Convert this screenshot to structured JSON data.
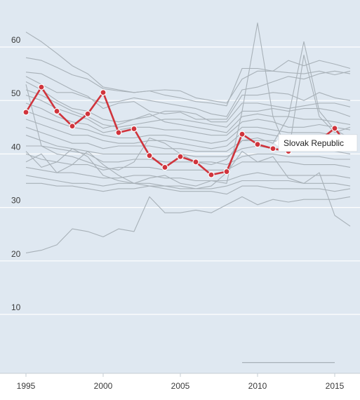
{
  "chart_data": {
    "type": "line",
    "x": [
      1995,
      1996,
      1997,
      1998,
      1999,
      2000,
      2001,
      2002,
      2003,
      2004,
      2005,
      2006,
      2007,
      2008,
      2009,
      2010,
      2011,
      2012,
      2013,
      2014,
      2015,
      2016
    ],
    "xticks": [
      1995,
      2000,
      2005,
      2010,
      2015
    ],
    "xtick_labels": [
      "1995",
      "2000",
      "2005",
      "2010",
      "2015"
    ],
    "yticks": [
      10,
      20,
      30,
      40,
      50,
      60
    ],
    "ytick_labels": [
      "10",
      "20",
      "30",
      "40",
      "50",
      "60"
    ],
    "ylim": [
      0,
      66
    ],
    "xlim": [
      1994.8,
      2016.3
    ],
    "grid": true,
    "highlight": {
      "name": "Slovak Republic",
      "color": "#d0343c",
      "values": [
        47.8,
        52.5,
        48.0,
        45.2,
        47.5,
        51.5,
        44.0,
        44.7,
        39.7,
        37.5,
        39.5,
        38.5,
        36.1,
        36.7,
        43.7,
        41.8,
        41.0,
        40.5,
        42.0,
        42.5,
        44.8,
        41.0
      ]
    },
    "background_series": [
      {
        "color": "#a8b1b8",
        "values": [
          62.8,
          61.0,
          58.8,
          56.5,
          55.0,
          52.5,
          52.0,
          51.5,
          51.8,
          51.0,
          50.5,
          49.8,
          49.5,
          49.0,
          56.0,
          56.0,
          55.5,
          57.5,
          56.5,
          57.5,
          56.8,
          56.0
        ]
      },
      {
        "color": "#a8b1b8",
        "values": [
          58.0,
          57.5,
          56.2,
          54.8,
          54.0,
          52.2,
          51.8,
          51.5,
          51.8,
          52.0,
          51.8,
          50.5,
          50.0,
          49.5,
          54.0,
          55.5,
          55.5,
          55.2,
          55.0,
          55.5,
          54.8,
          55.5
        ]
      },
      {
        "color": "#a8b1b8",
        "values": [
          55.3,
          55.0,
          53.5,
          52.0,
          50.8,
          48.5,
          49.5,
          49.8,
          48.0,
          47.5,
          47.8,
          46.5,
          46.5,
          46.5,
          51.0,
          51.0,
          51.5,
          51.2,
          50.0,
          51.5,
          50.5,
          50.0
        ]
      },
      {
        "color": "#a8b1b8",
        "values": [
          54.5,
          53.0,
          51.5,
          51.5,
          50.5,
          49.5,
          49.8,
          50.5,
          50.0,
          49.5,
          49.0,
          48.5,
          47.5,
          47.0,
          52.0,
          52.5,
          53.5,
          54.5,
          54.0,
          55.0,
          55.5,
          55.0
        ]
      },
      {
        "color": "#a8b1b8",
        "values": [
          53.5,
          52.0,
          50.0,
          48.5,
          48.0,
          46.5,
          46.0,
          46.5,
          47.0,
          48.0,
          48.0,
          47.5,
          46.0,
          46.0,
          49.5,
          49.5,
          49.0,
          48.5,
          49.0,
          49.5,
          49.5,
          48.8
        ]
      },
      {
        "color": "#a8b1b8",
        "values": [
          52.0,
          51.0,
          49.5,
          48.0,
          47.0,
          45.5,
          45.0,
          45.5,
          46.0,
          46.5,
          46.5,
          46.0,
          45.5,
          45.0,
          48.0,
          48.0,
          48.5,
          48.0,
          48.5,
          48.5,
          48.0,
          47.0
        ]
      },
      {
        "color": "#a8b1b8",
        "values": [
          51.0,
          50.0,
          48.5,
          47.5,
          46.5,
          44.8,
          45.5,
          46.5,
          47.5,
          46.0,
          45.5,
          45.0,
          44.5,
          44.0,
          47.0,
          47.5,
          47.0,
          47.0,
          46.5,
          46.5,
          46.0,
          45.5
        ]
      },
      {
        "color": "#a8b1b8",
        "values": [
          49.5,
          48.5,
          47.0,
          46.0,
          45.5,
          44.0,
          44.5,
          45.0,
          45.0,
          44.5,
          44.5,
          44.0,
          43.5,
          43.5,
          46.0,
          46.5,
          46.0,
          45.0,
          45.0,
          45.5,
          45.0,
          44.5
        ]
      },
      {
        "color": "#a8b1b8",
        "values": [
          48.0,
          47.0,
          46.0,
          45.0,
          44.5,
          43.5,
          43.0,
          43.0,
          43.5,
          43.5,
          43.0,
          42.5,
          42.0,
          42.5,
          45.0,
          45.0,
          44.5,
          44.0,
          44.0,
          44.0,
          43.5,
          43.0
        ]
      },
      {
        "color": "#a8b1b8",
        "values": [
          46.5,
          45.5,
          44.5,
          43.5,
          43.5,
          42.5,
          42.0,
          42.0,
          42.5,
          42.5,
          42.0,
          41.5,
          41.0,
          41.5,
          44.0,
          44.0,
          43.5,
          43.0,
          43.0,
          43.5,
          43.0,
          42.5
        ]
      },
      {
        "color": "#a8b1b8",
        "values": [
          45.0,
          44.0,
          43.0,
          42.0,
          42.0,
          41.0,
          41.5,
          41.5,
          41.5,
          41.0,
          41.0,
          40.5,
          40.5,
          40.5,
          42.5,
          42.5,
          42.5,
          42.0,
          42.0,
          42.0,
          41.5,
          41.0
        ]
      },
      {
        "color": "#a8b1b8",
        "values": [
          43.5,
          42.5,
          41.5,
          41.0,
          40.5,
          40.0,
          40.0,
          40.0,
          40.0,
          40.0,
          40.0,
          39.5,
          39.5,
          39.5,
          41.0,
          41.5,
          41.0,
          41.0,
          41.0,
          41.0,
          40.5,
          40.0
        ]
      },
      {
        "color": "#a8b1b8",
        "values": [
          41.5,
          41.5,
          41.0,
          40.5,
          40.0,
          38.5,
          38.5,
          39.0,
          39.0,
          38.5,
          38.5,
          38.5,
          38.5,
          38.0,
          39.5,
          40.0,
          40.0,
          39.5,
          39.5,
          39.5,
          39.0,
          39.0
        ]
      },
      {
        "color": "#a8b1b8",
        "values": [
          40.0,
          39.0,
          38.5,
          38.0,
          38.0,
          37.0,
          37.5,
          37.5,
          37.5,
          37.0,
          37.0,
          37.0,
          37.0,
          37.0,
          38.5,
          38.5,
          38.5,
          38.5,
          38.0,
          38.0,
          38.0,
          37.5
        ]
      },
      {
        "color": "#a8b1b8",
        "values": [
          37.5,
          37.0,
          36.5,
          36.5,
          36.0,
          35.5,
          35.5,
          36.0,
          36.0,
          35.5,
          35.5,
          35.0,
          35.0,
          35.0,
          36.0,
          36.5,
          36.0,
          36.0,
          36.0,
          36.0,
          36.0,
          35.5
        ]
      },
      {
        "color": "#a8b1b8",
        "values": [
          36.0,
          35.5,
          35.0,
          34.5,
          34.5,
          34.0,
          34.5,
          34.5,
          34.5,
          34.0,
          34.0,
          33.5,
          33.5,
          34.0,
          35.0,
          35.0,
          35.0,
          35.0,
          34.5,
          34.5,
          34.5,
          34.0
        ]
      },
      {
        "color": "#a8b1b8",
        "values": [
          34.5,
          34.5,
          34.0,
          34.0,
          33.5,
          33.0,
          33.5,
          33.5,
          34.0,
          33.5,
          33.0,
          33.0,
          33.0,
          32.5,
          34.0,
          34.0,
          33.5,
          33.5,
          33.5,
          33.5,
          33.0,
          33.5
        ]
      },
      {
        "color": "#a8b1b8",
        "values": [
          38.5,
          40.0,
          36.5,
          38.0,
          40.5,
          38.0,
          36.0,
          34.5,
          35.5,
          36.0,
          34.5,
          34.0,
          35.0,
          34.5,
          48.0,
          64.5,
          47.0,
          40.0,
          58.5,
          47.0,
          44.0,
          45.0
        ]
      },
      {
        "color": "#a8b1b8",
        "values": [
          53.0,
          41.5,
          40.0,
          39.5,
          38.5,
          37.5,
          37.0,
          38.5,
          43.0,
          42.0,
          40.0,
          38.5,
          38.0,
          39.0,
          42.5,
          43.0,
          42.0,
          47.0,
          61.0,
          48.0,
          44.5,
          43.0
        ]
      },
      {
        "color": "#a8b1b8",
        "values": [
          40.5,
          37.5,
          38.5,
          41.0,
          39.5,
          36.0,
          35.0,
          34.5,
          34.0,
          34.0,
          33.5,
          33.5,
          34.0,
          36.5,
          40.5,
          38.5,
          39.5,
          35.5,
          34.5,
          36.5,
          28.5,
          26.5
        ]
      },
      {
        "color": "#a8b1b8",
        "values": [
          21.5,
          22.0,
          23.0,
          26.0,
          25.5,
          24.5,
          26.0,
          25.5,
          32.0,
          29.0,
          29.0,
          29.5,
          29.0,
          30.5,
          32.0,
          30.5,
          31.5,
          31.0,
          31.5,
          31.5,
          31.5,
          32.0
        ]
      }
    ],
    "partial_series": {
      "color": "#a8b1b8",
      "x": [
        2009,
        2010,
        2011,
        2012,
        2013,
        2014,
        2015
      ],
      "values": [
        1.0,
        1.0,
        1.0,
        1.0,
        1.0,
        1.0,
        1.0
      ]
    },
    "annotation": {
      "text": "Slovak Republic",
      "x": 2011,
      "y": 41.0
    }
  },
  "colors": {
    "plot_background": "#dfe8f1",
    "grid": "#ffffff",
    "axis_text": "#3b3b3b",
    "axis_line": "#c4ccd3",
    "label_box": "#ffffff"
  }
}
